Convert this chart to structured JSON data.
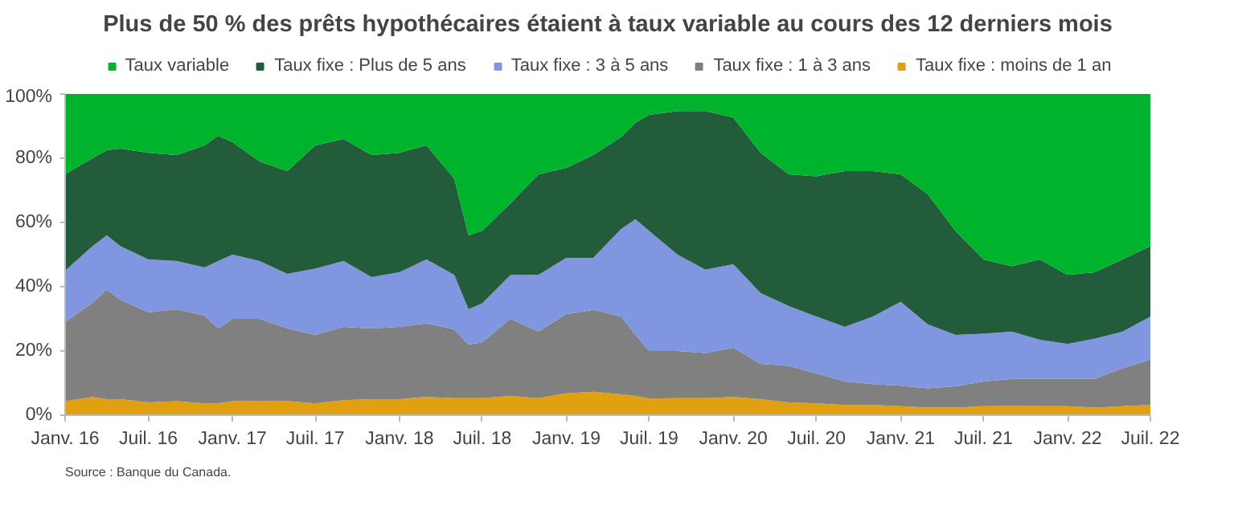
{
  "chart_data": {
    "type": "area",
    "stacked": true,
    "title": "Plus de 50 % des prêts hypothécaires étaient à taux variable au cours des 12 derniers mois",
    "annotations": [
      "Source : Banque du Canada."
    ],
    "x": [
      "2016-01",
      "2016-03",
      "2016-04",
      "2016-05",
      "2016-07",
      "2016-09",
      "2016-11",
      "2016-12",
      "2017-01",
      "2017-03",
      "2017-05",
      "2017-07",
      "2017-09",
      "2017-11",
      "2018-01",
      "2018-03",
      "2018-05",
      "2018-06",
      "2018-07",
      "2018-09",
      "2018-11",
      "2019-01",
      "2019-03",
      "2019-05",
      "2019-06",
      "2019-07",
      "2019-09",
      "2019-11",
      "2020-01",
      "2020-03",
      "2020-05",
      "2020-07",
      "2020-09",
      "2020-11",
      "2021-01",
      "2021-03",
      "2021-05",
      "2021-07",
      "2021-09",
      "2021-11",
      "2022-01",
      "2022-03",
      "2022-05",
      "2022-07"
    ],
    "series": [
      {
        "name": "Taux fixe : moins de 1 an",
        "color": "#e0a010",
        "values": [
          4.4,
          5.7,
          5,
          5,
          4,
          4.4,
          3.7,
          3.7,
          4.4,
          4.5,
          4.4,
          3.7,
          4.7,
          5,
          5,
          5.7,
          5.3,
          5.3,
          5.3,
          6,
          5.3,
          6.8,
          7.3,
          6.5,
          6,
          5.2,
          5.3,
          5.3,
          5.7,
          5,
          4,
          3.7,
          3.2,
          3.2,
          2.8,
          2.4,
          2.4,
          2.8,
          2.9,
          2.8,
          2.8,
          2.4,
          2.8,
          3.2
        ]
      },
      {
        "name": "Taux fixe : 1 à 3 ans",
        "color": "#808080",
        "values": [
          24.6,
          29.3,
          34,
          31,
          28,
          28.6,
          27.3,
          23.3,
          25.6,
          25.5,
          22.6,
          21.3,
          22.8,
          22,
          22.5,
          22.9,
          21.4,
          16.7,
          17.4,
          24,
          20.7,
          24.7,
          25.5,
          24.2,
          19,
          14.8,
          14.7,
          14.1,
          15.3,
          11,
          11.4,
          9.3,
          7.3,
          6.5,
          6.4,
          6,
          6.6,
          7.7,
          8.4,
          8.5,
          8.5,
          8.9,
          11.8,
          14.1
        ]
      },
      {
        "name": "Taux fixe : 3 à 5 ans",
        "color": "#8097e0",
        "values": [
          16,
          17.6,
          17,
          16.6,
          16.5,
          15,
          15,
          21,
          20,
          18,
          17,
          20.6,
          20.5,
          16,
          17,
          19.9,
          17,
          11,
          12.1,
          13.7,
          17.7,
          17.5,
          16.2,
          27.3,
          36,
          37.4,
          30,
          25.9,
          26,
          22,
          18.6,
          17.7,
          17,
          21,
          26.1,
          19.9,
          16,
          14.9,
          14.7,
          12.2,
          10.9,
          12.5,
          11.4,
          13.4
        ]
      },
      {
        "name": "Taux fixe : Plus de 5 ans",
        "color": "#225c3a",
        "values": [
          30,
          27.4,
          26.5,
          30.4,
          33.2,
          33,
          38,
          39,
          35,
          31,
          32,
          38.4,
          38,
          38,
          37.2,
          35.5,
          29.9,
          23,
          22.6,
          22.3,
          31.3,
          28,
          32,
          28.6,
          30,
          36.1,
          44.7,
          49.4,
          45.7,
          43.7,
          41,
          43.7,
          48.5,
          45.3,
          39.7,
          40.5,
          32.4,
          23.1,
          20.4,
          25,
          21.5,
          20.7,
          22.5,
          21.9
        ]
      },
      {
        "name": "Taux variable",
        "color": "#00b32c",
        "values": [
          25,
          20,
          17.5,
          17,
          18.3,
          19,
          16,
          13,
          15,
          21,
          24,
          16,
          14,
          19,
          18.3,
          16,
          26.4,
          44,
          42.6,
          34,
          25,
          23,
          19,
          13.4,
          9,
          6.5,
          5.3,
          5.3,
          7.3,
          18.3,
          25,
          25.6,
          24,
          24,
          25,
          31.2,
          42.6,
          51.5,
          53.6,
          51.5,
          56.3,
          55.5,
          51.5,
          47.4
        ]
      }
    ],
    "xlim": [
      "2016-01",
      "2022-07"
    ],
    "xticks": [
      {
        "value": "2016-01",
        "label": "Janv. 16"
      },
      {
        "value": "2016-07",
        "label": "Juil. 16"
      },
      {
        "value": "2017-01",
        "label": "Janv. 17"
      },
      {
        "value": "2017-07",
        "label": "Juil. 17"
      },
      {
        "value": "2018-01",
        "label": "Janv. 18"
      },
      {
        "value": "2018-07",
        "label": "Juil. 18"
      },
      {
        "value": "2019-01",
        "label": "Janv. 19"
      },
      {
        "value": "2019-07",
        "label": "Juil. 19"
      },
      {
        "value": "2020-01",
        "label": "Janv. 20"
      },
      {
        "value": "2020-07",
        "label": "Juil. 20"
      },
      {
        "value": "2021-01",
        "label": "Janv. 21"
      },
      {
        "value": "2021-07",
        "label": "Juil. 21"
      },
      {
        "value": "2022-01",
        "label": "Janv. 22"
      },
      {
        "value": "2022-07",
        "label": "Juil. 22"
      }
    ],
    "ylim": [
      0,
      100
    ],
    "yticks": [
      {
        "value": 0,
        "label": "0%"
      },
      {
        "value": 20,
        "label": "20%"
      },
      {
        "value": 40,
        "label": "40%"
      },
      {
        "value": 60,
        "label": "60%"
      },
      {
        "value": 80,
        "label": "80%"
      },
      {
        "value": 100,
        "label": "100%"
      }
    ],
    "grid": false,
    "legend": "top"
  }
}
